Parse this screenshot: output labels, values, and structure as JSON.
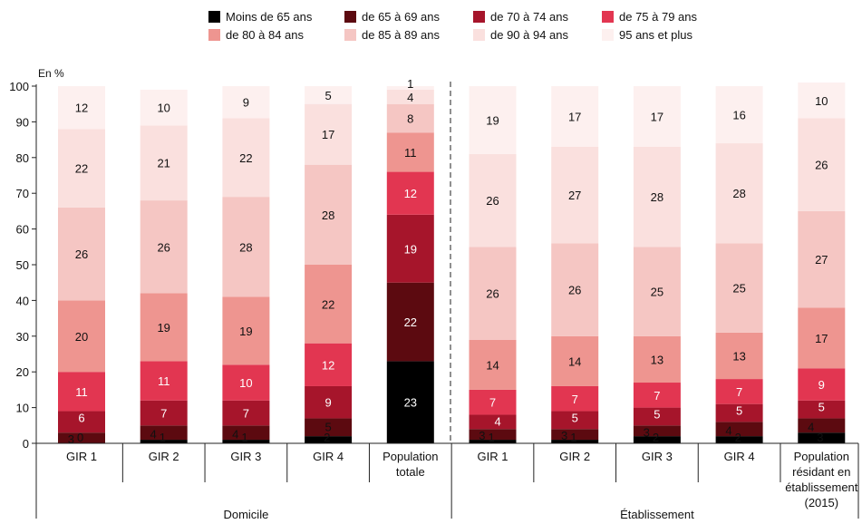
{
  "chart_data": {
    "type": "bar",
    "stacked": true,
    "unit_label": "En %",
    "ylim": [
      0,
      100
    ],
    "yticks": [
      0,
      10,
      20,
      30,
      40,
      50,
      60,
      70,
      80,
      90,
      100
    ],
    "grid": false,
    "legend_position": "top",
    "categories": [
      "GIR 1",
      "GIR 2",
      "GIR 3",
      "GIR 4",
      "Population totale",
      "GIR 1",
      "GIR 2",
      "GIR 3",
      "GIR 4",
      "Population résidant en établissement (2015)"
    ],
    "groups": [
      {
        "label": "Domicile",
        "categories": [
          0,
          1,
          2,
          3,
          4
        ]
      },
      {
        "label": "Établissement",
        "categories": [
          5,
          6,
          7,
          8,
          9
        ]
      }
    ],
    "series": [
      {
        "name": "Moins de 65 ans",
        "color": "#000000",
        "values": [
          0,
          1,
          1,
          2,
          23,
          1,
          1,
          2,
          2,
          3
        ]
      },
      {
        "name": "de 65 à 69 ans",
        "color": "#5c0a10",
        "values": [
          3,
          4,
          4,
          5,
          22,
          3,
          3,
          3,
          4,
          4
        ]
      },
      {
        "name": "de 70 à 74 ans",
        "color": "#a6152b",
        "values": [
          6,
          7,
          7,
          9,
          19,
          4,
          5,
          5,
          5,
          5
        ]
      },
      {
        "name": "de 75 à 79 ans",
        "color": "#e23651",
        "values": [
          11,
          11,
          10,
          12,
          12,
          7,
          7,
          7,
          7,
          9
        ]
      },
      {
        "name": "de 80 à 84 ans",
        "color": "#ee9590",
        "values": [
          20,
          19,
          19,
          22,
          11,
          14,
          14,
          13,
          13,
          17
        ]
      },
      {
        "name": "de 85 à 89 ans",
        "color": "#f5c6c3",
        "values": [
          26,
          26,
          28,
          28,
          8,
          26,
          26,
          25,
          25,
          27
        ]
      },
      {
        "name": "de 90 à 94 ans",
        "color": "#fae0de",
        "values": [
          22,
          21,
          22,
          17,
          4,
          26,
          27,
          28,
          28,
          26
        ]
      },
      {
        "name": "95 ans et plus",
        "color": "#fdf0ef",
        "values": [
          12,
          10,
          9,
          5,
          1,
          19,
          17,
          17,
          16,
          10
        ]
      }
    ]
  }
}
